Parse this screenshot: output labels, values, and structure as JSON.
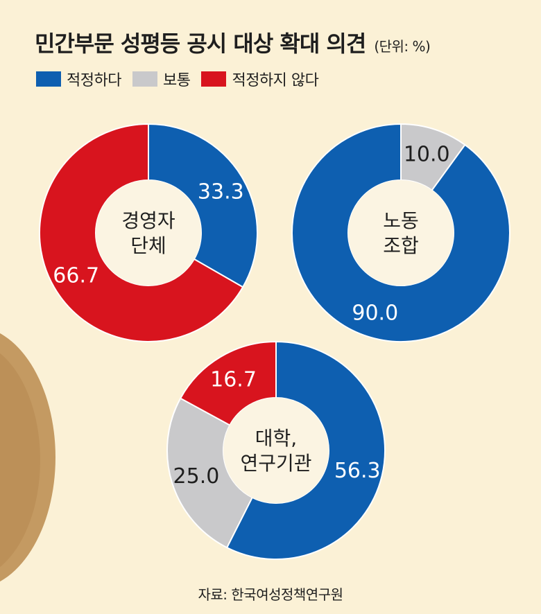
{
  "title": "민간부문 성평등 공시 대상 확대 의견",
  "unit": "(단위: %)",
  "legend": [
    {
      "label": "적정하다",
      "color": "#0e5fb0"
    },
    {
      "label": "보통",
      "color": "#c9c9cb"
    },
    {
      "label": "적정하지 않다",
      "color": "#d8141e"
    }
  ],
  "source": "자료: 한국여성정책연구원",
  "chart_data": [
    {
      "type": "pie",
      "center_label": [
        "경영자",
        "단체"
      ],
      "slices": [
        {
          "category": "적정하다",
          "value": 33.3,
          "label": "33.3"
        },
        {
          "category": "적정하지 않다",
          "value": 66.7,
          "label": "66.7"
        }
      ]
    },
    {
      "type": "pie",
      "center_label": [
        "노동",
        "조합"
      ],
      "slices": [
        {
          "category": "적정하다",
          "value": 90.0,
          "label": "90.0"
        },
        {
          "category": "보통",
          "value": 10.0,
          "label": "10.0"
        }
      ]
    },
    {
      "type": "pie",
      "center_label": [
        "대학,",
        "연구기관"
      ],
      "slices": [
        {
          "category": "적정하다",
          "value": 56.3,
          "label": "56.3"
        },
        {
          "category": "보통",
          "value": 25.0,
          "label": "25.0"
        },
        {
          "category": "적정하지 않다",
          "value": 16.7,
          "label": "16.7"
        }
      ]
    }
  ]
}
